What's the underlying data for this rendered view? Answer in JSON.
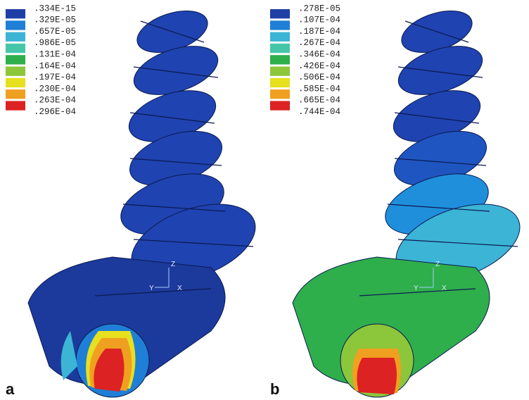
{
  "panels": [
    {
      "label": "a",
      "legend": {
        "levels": [
          ".334E-15",
          ".329E-05",
          ".657E-05",
          ".986E-05",
          ".131E-04",
          ".164E-04",
          ".197E-04",
          ".230E-04",
          ".263E-04",
          ".296E-04"
        ],
        "colors": [
          "#1f3fa6",
          "#1f7fd6",
          "#3cb4d6",
          "#45c6a8",
          "#2fae4c",
          "#8cc63a",
          "#e6e01e",
          "#f0a020",
          "#dc2222"
        ]
      },
      "triad": [
        "Z",
        "Y",
        "X"
      ]
    },
    {
      "label": "b",
      "legend": {
        "levels": [
          ".278E-05",
          ".107E-04",
          ".187E-04",
          ".267E-04",
          ".346E-04",
          ".426E-04",
          ".506E-04",
          ".585E-04",
          ".665E-04",
          ".744E-04"
        ],
        "colors": [
          "#1f3fa6",
          "#1f7fd6",
          "#3cb4d6",
          "#45c6a8",
          "#2fae4c",
          "#8cc63a",
          "#e6e01e",
          "#f0a020",
          "#dc2222"
        ]
      },
      "triad": [
        "Z",
        "Y",
        "X"
      ]
    }
  ]
}
